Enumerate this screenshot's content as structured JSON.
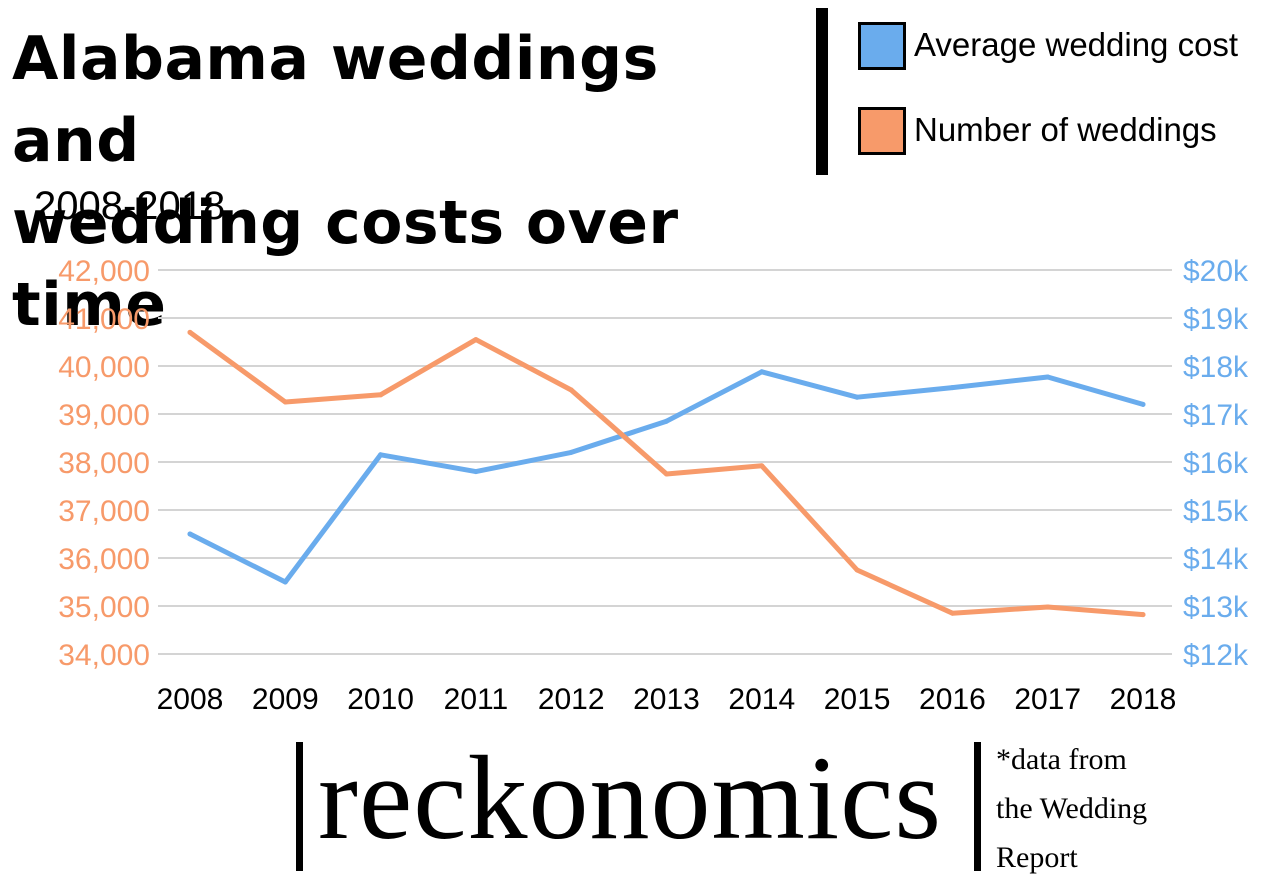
{
  "header": {
    "title_line1": "Alabama weddings and",
    "title_line2": "wedding costs over time",
    "subtitle": "2008-2018"
  },
  "legend": [
    {
      "label": "Average wedding cost",
      "color": "#6aaced"
    },
    {
      "label": "Number of weddings",
      "color": "#f79a6a"
    }
  ],
  "chart_data": {
    "type": "line",
    "title": "Alabama weddings and wedding costs over time",
    "subtitle": "2008-2018",
    "categories": [
      "2008",
      "2009",
      "2010",
      "2011",
      "2012",
      "2013",
      "2014",
      "2015",
      "2016",
      "2017",
      "2018"
    ],
    "series": [
      {
        "name": "Average wedding cost",
        "axis": "right",
        "color": "#6aaced",
        "values": [
          14500,
          13500,
          16150,
          15800,
          16200,
          16850,
          17880,
          17350,
          17550,
          17770,
          17200
        ]
      },
      {
        "name": "Number of weddings",
        "axis": "left",
        "color": "#f79a6a",
        "values": [
          40700,
          39250,
          39400,
          40550,
          39500,
          37750,
          37920,
          35750,
          34850,
          34980,
          34820
        ]
      }
    ],
    "y_left": {
      "min": 34000,
      "max": 42000,
      "step": 1000,
      "tick_labels": [
        "34,000",
        "35,000",
        "36,000",
        "37,000",
        "38,000",
        "39,000",
        "40,000",
        "41,000",
        "42,000"
      ]
    },
    "y_right": {
      "min": 12000,
      "max": 20000,
      "step": 1000,
      "tick_labels": [
        "$12k",
        "$13k",
        "$14k",
        "$15k",
        "$16k",
        "$17k",
        "$18k",
        "$19k",
        "$20k"
      ]
    },
    "grid": true,
    "legend_position": "top-right"
  },
  "brand": {
    "name": "reckonomics"
  },
  "source": {
    "line1": "*data from",
    "line2": "the Wedding",
    "line3": "Report"
  }
}
